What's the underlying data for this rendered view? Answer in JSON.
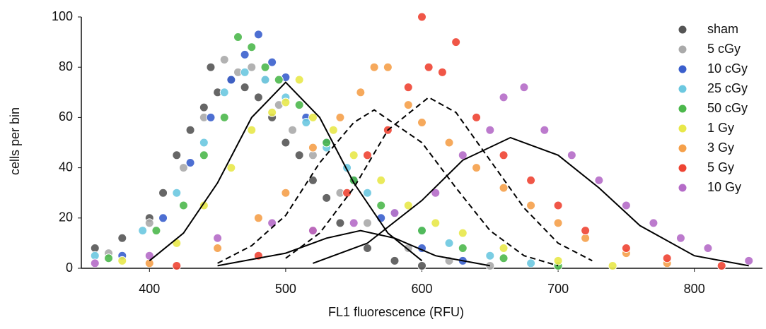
{
  "chart_data": {
    "type": "scatter",
    "x_label": "FL1 fluorescence (RFU)",
    "y_label": "cells per bin",
    "xlim": [
      350,
      850
    ],
    "ylim": [
      0,
      100
    ],
    "xticks": [
      400,
      500,
      600,
      700,
      800
    ],
    "yticks": [
      0,
      20,
      40,
      60,
      80,
      100
    ],
    "legend": "top-right",
    "series": [
      {
        "name": "sham",
        "color": "#555555",
        "x": [
          360,
          380,
          400,
          410,
          420,
          430,
          440,
          445,
          450,
          460,
          470,
          480,
          490,
          500,
          510,
          520,
          530,
          540,
          560,
          580,
          600
        ],
        "values": [
          8,
          12,
          20,
          30,
          45,
          55,
          64,
          80,
          70,
          75,
          72,
          68,
          60,
          50,
          45,
          35,
          28,
          18,
          8,
          3,
          1
        ]
      },
      {
        "name": "5 cGy",
        "color": "#aaaaaa",
        "x": [
          370,
          400,
          425,
          440,
          455,
          465,
          475,
          485,
          495,
          505,
          520,
          540,
          560,
          590,
          620,
          650
        ],
        "values": [
          6,
          18,
          40,
          60,
          83,
          78,
          80,
          75,
          65,
          55,
          45,
          30,
          18,
          8,
          3,
          1
        ]
      },
      {
        "name": "10 cGy",
        "color": "#3a5fcd",
        "x": [
          380,
          410,
          430,
          445,
          460,
          470,
          480,
          490,
          500,
          515,
          530,
          550,
          570,
          600,
          630
        ],
        "values": [
          5,
          20,
          42,
          60,
          75,
          85,
          93,
          82,
          76,
          60,
          50,
          35,
          20,
          8,
          3
        ]
      },
      {
        "name": "25 cGy",
        "color": "#6cc8e0",
        "x": [
          360,
          395,
          420,
          440,
          455,
          470,
          485,
          500,
          515,
          530,
          545,
          560,
          580,
          600,
          620,
          650,
          680
        ],
        "values": [
          5,
          15,
          30,
          50,
          70,
          78,
          75,
          68,
          58,
          48,
          40,
          30,
          22,
          15,
          10,
          5,
          2
        ]
      },
      {
        "name": "50 cGy",
        "color": "#4cb84c",
        "x": [
          370,
          405,
          425,
          440,
          455,
          465,
          475,
          485,
          495,
          510,
          530,
          550,
          570,
          600,
          630,
          660,
          700
        ],
        "values": [
          4,
          15,
          25,
          45,
          60,
          92,
          88,
          80,
          75,
          65,
          50,
          35,
          25,
          15,
          8,
          4,
          1
        ]
      },
      {
        "name": "1 Gy",
        "color": "#e8e84a",
        "x": [
          380,
          420,
          440,
          460,
          475,
          490,
          500,
          510,
          520,
          535,
          550,
          570,
          590,
          610,
          630,
          660,
          700,
          740
        ],
        "values": [
          3,
          10,
          25,
          40,
          55,
          62,
          66,
          75,
          60,
          55,
          45,
          35,
          25,
          18,
          14,
          8,
          3,
          1
        ]
      },
      {
        "name": "3 Gy",
        "color": "#f5a04a",
        "x": [
          400,
          450,
          480,
          500,
          520,
          540,
          555,
          565,
          575,
          590,
          600,
          620,
          640,
          660,
          680,
          700,
          720,
          750,
          780
        ],
        "values": [
          2,
          8,
          20,
          30,
          48,
          60,
          70,
          80,
          80,
          65,
          58,
          50,
          40,
          32,
          25,
          18,
          12,
          6,
          2
        ]
      },
      {
        "name": "5 Gy",
        "color": "#ee4433",
        "x": [
          420,
          480,
          520,
          545,
          560,
          575,
          590,
          600,
          605,
          615,
          625,
          640,
          660,
          680,
          700,
          720,
          750,
          780,
          820
        ],
        "values": [
          1,
          5,
          15,
          30,
          45,
          55,
          72,
          100,
          80,
          78,
          90,
          60,
          45,
          35,
          25,
          15,
          8,
          4,
          1
        ]
      },
      {
        "name": "10 Gy",
        "color": "#b56cc8",
        "x": [
          360,
          400,
          450,
          490,
          520,
          550,
          580,
          610,
          630,
          650,
          660,
          675,
          690,
          710,
          730,
          750,
          770,
          790,
          810,
          840
        ],
        "values": [
          2,
          5,
          12,
          18,
          15,
          18,
          22,
          30,
          45,
          55,
          68,
          72,
          55,
          45,
          35,
          25,
          18,
          12,
          8,
          3
        ]
      }
    ],
    "curves": [
      {
        "dashed": false,
        "x": [
          400,
          425,
          450,
          475,
          500,
          525,
          550,
          575,
          600
        ],
        "y": [
          3,
          14,
          34,
          60,
          74,
          60,
          34,
          14,
          3
        ]
      },
      {
        "dashed": true,
        "x": [
          450,
          475,
          500,
          525,
          550,
          565,
          600,
          625,
          650,
          675,
          700
        ],
        "y": [
          2,
          9,
          21,
          42,
          58,
          63,
          50,
          32,
          15,
          5,
          1
        ]
      },
      {
        "dashed": true,
        "x": [
          500,
          525,
          550,
          575,
          605,
          625,
          650,
          675,
          700,
          725
        ],
        "y": [
          4,
          14,
          32,
          55,
          68,
          62,
          43,
          24,
          10,
          3
        ]
      },
      {
        "dashed": false,
        "x": [
          520,
          560,
          600,
          630,
          665,
          700,
          730,
          760,
          800,
          840
        ],
        "y": [
          2,
          10,
          27,
          43,
          52,
          45,
          32,
          17,
          5,
          1
        ]
      },
      {
        "dashed": false,
        "x": [
          450,
          500,
          530,
          555,
          580,
          610,
          650
        ],
        "y": [
          1,
          6,
          12,
          15,
          12,
          5,
          1
        ]
      }
    ]
  }
}
